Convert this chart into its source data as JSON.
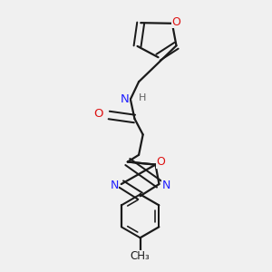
{
  "background_color": "#f0f0f0",
  "bond_color": "#1a1a1a",
  "N_color": "#2020ff",
  "O_color": "#dd1111",
  "H_color": "#606060",
  "figsize": [
    3.0,
    3.0
  ],
  "dpi": 100,
  "xlim": [
    0,
    10
  ],
  "ylim": [
    0,
    10
  ]
}
